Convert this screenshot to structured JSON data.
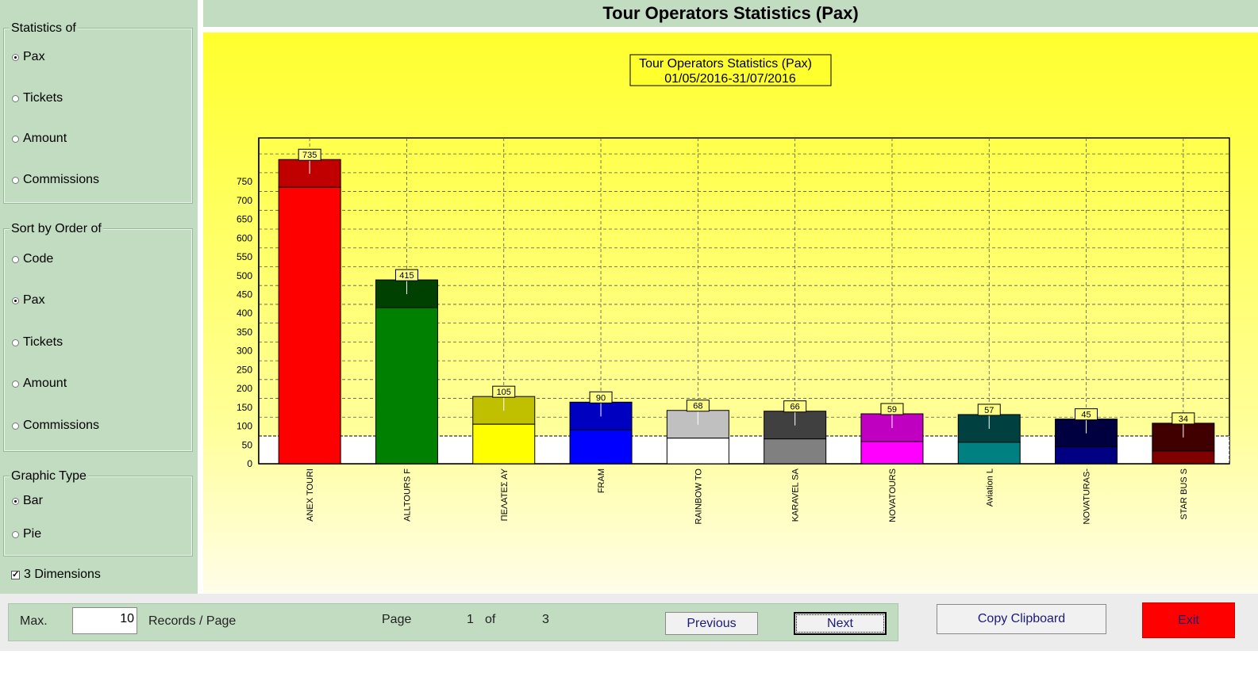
{
  "stats_group": {
    "legend": "Statistics of",
    "options": [
      {
        "label": "Pax",
        "selected": true
      },
      {
        "label": "Tickets",
        "selected": false
      },
      {
        "label": "Amount",
        "selected": false
      },
      {
        "label": "Commissions",
        "selected": false
      }
    ]
  },
  "sort_group": {
    "legend": "Sort by Order of",
    "options": [
      {
        "label": "Code",
        "selected": false
      },
      {
        "label": "Pax",
        "selected": true
      },
      {
        "label": "Tickets",
        "selected": false
      },
      {
        "label": "Amount",
        "selected": false
      },
      {
        "label": "Commissions",
        "selected": false
      }
    ]
  },
  "graphic_group": {
    "legend": "Graphic Type",
    "options": [
      {
        "label": "Bar",
        "selected": true
      },
      {
        "label": "Pie",
        "selected": false
      }
    ]
  },
  "three_d": {
    "label": "3 Dimensions",
    "checked": true
  },
  "header": {
    "title": "Tour Operators Statistics (Pax)"
  },
  "chart_data": {
    "type": "bar",
    "title": "Tour Operators Statistics (Pax)",
    "subtitle": "01/05/2016-31/07/2016",
    "categories": [
      "ANEX TOURI",
      "ALLTOURS F",
      "ΠΕΛΑΤΕΣ ΑΥ",
      "FRAM",
      "RAINBOW TO",
      "KARAVEL SA",
      "NOVATOURS",
      "Aviation L",
      "NOVATURAS-",
      "STAR BUS S"
    ],
    "values": [
      735,
      415,
      105,
      90,
      68,
      66,
      59,
      57,
      45,
      34
    ],
    "ylim": [
      0,
      800
    ],
    "yticks": [
      0,
      50,
      100,
      150,
      200,
      250,
      300,
      350,
      400,
      450,
      500,
      550,
      600,
      650,
      700,
      750
    ],
    "grid": true,
    "three_d": true,
    "colors": {
      "front": [
        "#ff0000",
        "#008000",
        "#ffff00",
        "#0000ff",
        "#ffffff",
        "#808080",
        "#ff00ff",
        "#008080",
        "#000080",
        "#800000"
      ],
      "top": [
        "#c00000",
        "#004000",
        "#c0c000",
        "#0000c0",
        "#c0c0c0",
        "#404040",
        "#c000c0",
        "#004040",
        "#000040",
        "#400000"
      ]
    }
  },
  "footer": {
    "max_label": "Max.",
    "max_value": "10",
    "records_label": "Records / Page",
    "page_label": "Page",
    "page_current": "1",
    "of_label": "of",
    "page_total": "3",
    "prev_label": "Previous",
    "next_label": "Next",
    "copy_label": "Copy Clipboard",
    "exit_label": "Exit"
  },
  "colors": {
    "panel": "#c2dcc2",
    "exit": "#ff0000"
  }
}
